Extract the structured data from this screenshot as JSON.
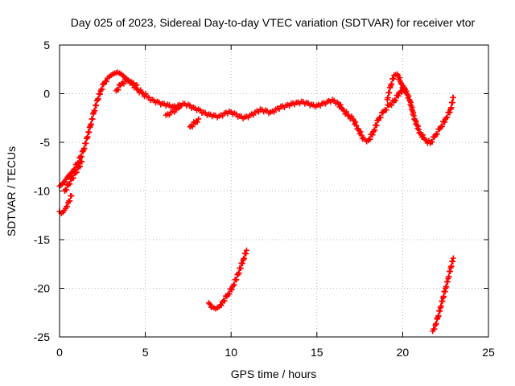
{
  "chart_data": {
    "type": "scatter",
    "title": "Day 025 of 2023, Sidereal Day-to-day VTEC variation (SDTVAR) for receiver vtor",
    "xlabel": "GPS time / hours",
    "ylabel": "SDTVAR / TECUs",
    "xlim": [
      0,
      25
    ],
    "ylim": [
      -25,
      5
    ],
    "xticks": [
      0,
      5,
      10,
      15,
      20,
      25
    ],
    "yticks": [
      5,
      0,
      -5,
      -10,
      -15,
      -20,
      -25
    ],
    "xtick_labels": [
      "0",
      "5",
      "10",
      "15",
      "20",
      "25"
    ],
    "ytick_labels": [
      "5",
      "0",
      "-5",
      "-10",
      "-15",
      "-20",
      "-25"
    ],
    "grid": true,
    "marker": "+",
    "color": "#ff0000",
    "series": [
      {
        "name": "main",
        "x": [
          0.0,
          0.15,
          0.3,
          0.45,
          0.6,
          0.8,
          1.0,
          1.2,
          1.4,
          1.6,
          1.8,
          2.0,
          2.2,
          2.4,
          2.6,
          2.8,
          3.0,
          3.2,
          3.4,
          3.6,
          3.8,
          4.0,
          4.2,
          4.5,
          4.8,
          5.1,
          5.4,
          5.7,
          6.0,
          6.3,
          6.6,
          6.9,
          7.2,
          7.5,
          7.8,
          8.1,
          8.4,
          8.7,
          9.0,
          9.3,
          9.6,
          9.9,
          10.2,
          10.5,
          10.8,
          11.1,
          11.4,
          11.7,
          12.0,
          12.3,
          12.6,
          12.9,
          13.2,
          13.5,
          13.8,
          14.1,
          14.4,
          14.7,
          15.0,
          15.3,
          15.6,
          15.9,
          16.2,
          16.5,
          16.8,
          17.1,
          17.4,
          17.7,
          18.0,
          18.3,
          18.6,
          18.9,
          19.2,
          19.5,
          19.8,
          20.1,
          20.4,
          20.7,
          21.0,
          21.3,
          21.6,
          21.9,
          22.2,
          22.5,
          22.8,
          22.95
        ],
        "y": [
          -9.5,
          -9.3,
          -9.0,
          -8.6,
          -8.3,
          -7.9,
          -7.3,
          -6.6,
          -5.8,
          -4.6,
          -3.3,
          -1.9,
          -0.7,
          0.3,
          1.1,
          1.6,
          1.9,
          2.1,
          2.2,
          2.0,
          1.7,
          1.4,
          1.1,
          0.5,
          0.1,
          -0.3,
          -0.6,
          -0.8,
          -1.0,
          -1.1,
          -1.3,
          -1.2,
          -1.0,
          -1.1,
          -1.4,
          -1.6,
          -1.9,
          -2.1,
          -2.2,
          -2.3,
          -2.0,
          -1.8,
          -2.0,
          -2.3,
          -2.4,
          -2.2,
          -1.9,
          -1.6,
          -1.7,
          -1.9,
          -1.6,
          -1.3,
          -1.2,
          -1.0,
          -0.9,
          -0.8,
          -0.9,
          -1.1,
          -1.2,
          -1.0,
          -0.8,
          -0.6,
          -0.9,
          -1.6,
          -2.2,
          -2.6,
          -3.6,
          -4.6,
          -4.8,
          -3.9,
          -2.6,
          -1.8,
          -1.2,
          -0.8,
          0.1,
          0.6,
          -0.6,
          -2.6,
          -4.0,
          -4.7,
          -5.1,
          -4.3,
          -3.5,
          -2.6,
          -1.6,
          -0.4
        ]
      },
      {
        "name": "lower-start",
        "x": [
          0.0,
          0.1,
          0.2,
          0.35,
          0.5,
          0.7
        ],
        "y": [
          -12.1,
          -12.3,
          -12.2,
          -11.8,
          -11.2,
          -10.5
        ]
      },
      {
        "name": "lower-branch",
        "x": [
          0.3,
          0.5,
          0.7,
          0.9,
          1.1,
          1.3
        ],
        "y": [
          -10.0,
          -9.4,
          -8.8,
          -8.2,
          -7.6,
          -7.0
        ]
      },
      {
        "name": "high-offset",
        "x": [
          3.3,
          3.6,
          3.9,
          4.2,
          4.5
        ],
        "y": [
          0.3,
          1.0,
          1.4,
          1.2,
          0.9
        ]
      },
      {
        "name": "dip-cluster",
        "x": [
          6.2,
          6.5,
          6.8,
          7.0
        ],
        "y": [
          -2.2,
          -1.9,
          -1.6,
          -1.4
        ]
      },
      {
        "name": "dip-cluster-2",
        "x": [
          7.6,
          7.9,
          8.1
        ],
        "y": [
          -3.4,
          -3.0,
          -2.6
        ]
      },
      {
        "name": "evening-spike",
        "x": [
          19.1,
          19.3,
          19.5,
          19.7,
          19.9,
          20.1
        ],
        "y": [
          -0.6,
          0.8,
          1.9,
          2.0,
          1.1,
          0.3
        ]
      },
      {
        "name": "late-segment-1",
        "x": [
          8.7,
          8.9,
          9.1,
          9.3,
          9.5,
          9.8,
          10.1,
          10.4,
          10.7,
          10.9
        ],
        "y": [
          -21.5,
          -21.9,
          -22.1,
          -21.9,
          -21.4,
          -20.7,
          -19.8,
          -18.6,
          -17.1,
          -16.1
        ]
      },
      {
        "name": "late-segment-2",
        "x": [
          21.75,
          21.9,
          22.05,
          22.2,
          22.35,
          22.5,
          22.65,
          22.8,
          22.95
        ],
        "y": [
          -24.4,
          -23.8,
          -23.0,
          -22.0,
          -21.0,
          -20.0,
          -19.0,
          -17.9,
          -16.9
        ]
      }
    ]
  }
}
